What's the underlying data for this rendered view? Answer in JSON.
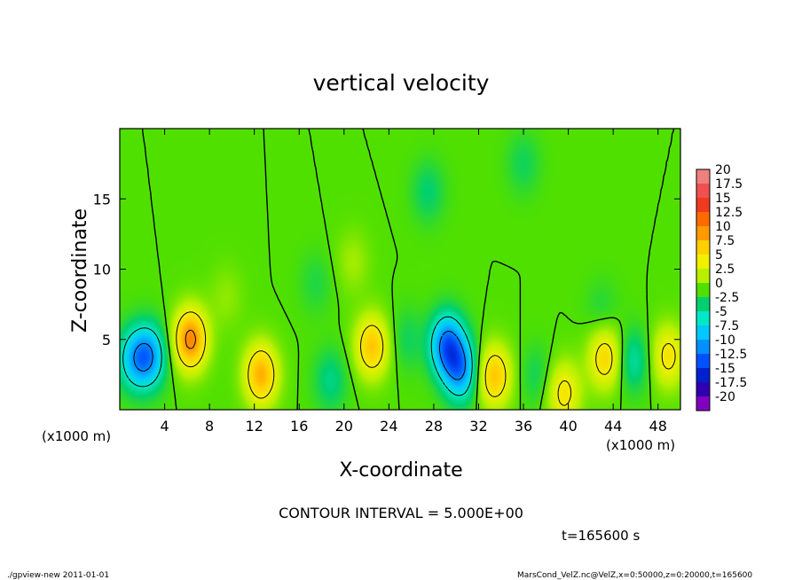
{
  "chart_data": {
    "type": "heatmap",
    "title": "vertical velocity",
    "xlabel": "X-coordinate",
    "ylabel": "Z-coordinate",
    "x_unit_label": "(x1000 m)",
    "xlim": [
      0,
      50
    ],
    "ylim": [
      0,
      20
    ],
    "x_ticks": [
      4,
      8,
      12,
      16,
      20,
      24,
      28,
      32,
      36,
      40,
      44,
      48
    ],
    "y_ticks": [
      5,
      10,
      15
    ],
    "contour_interval_text": "CONTOUR INTERVAL = 5.000E+00",
    "time_text": "t=165600 s",
    "colorbar": {
      "labels": [
        "20",
        "17.5",
        "15",
        "12.5",
        "10",
        "7.5",
        "5",
        "2.5",
        "0",
        "-2.5",
        "-5",
        "-7.5",
        "-10",
        "-12.5",
        "-15",
        "-17.5",
        "-20"
      ],
      "colors": [
        "#f08080",
        "#f05050",
        "#f03a20",
        "#ff6a00",
        "#ff9a00",
        "#ffd000",
        "#f0f000",
        "#b8f000",
        "#50e000",
        "#00d070",
        "#00e8c8",
        "#00c8ff",
        "#0090ff",
        "#0050ff",
        "#0020d0",
        "#3000b0",
        "#8000c0"
      ]
    },
    "features": [
      {
        "x": 1.2,
        "z": 3.6,
        "w": -6
      },
      {
        "x": 2.6,
        "z": 3.8,
        "w": -9
      },
      {
        "x": 6.3,
        "z": 5.0,
        "w": 11
      },
      {
        "x": 12.6,
        "z": 2.5,
        "w": 9
      },
      {
        "x": 18.8,
        "z": 2.1,
        "w": -3
      },
      {
        "x": 22.5,
        "z": 4.5,
        "w": 8
      },
      {
        "x": 25.6,
        "z": 5.0,
        "w": -2
      },
      {
        "x": 29.2,
        "z": 4.6,
        "w": -11
      },
      {
        "x": 30.4,
        "z": 2.8,
        "w": -9
      },
      {
        "x": 33.4,
        "z": 2.4,
        "w": 8
      },
      {
        "x": 37.2,
        "z": 2.4,
        "w": -2
      },
      {
        "x": 39.6,
        "z": 1.2,
        "w": 6
      },
      {
        "x": 43.3,
        "z": 3.7,
        "w": 7
      },
      {
        "x": 45.8,
        "z": 3.5,
        "w": -4
      },
      {
        "x": 48.9,
        "z": 3.8,
        "w": 6
      },
      {
        "x": 17.5,
        "z": 9.0,
        "w": -1.5
      },
      {
        "x": 20.8,
        "z": 10.5,
        "w": 2
      },
      {
        "x": 27.5,
        "z": 15.5,
        "w": -2.5
      },
      {
        "x": 36.0,
        "z": 17.5,
        "w": -2
      },
      {
        "x": 9.5,
        "z": 8.0,
        "w": 1.5
      },
      {
        "x": 43.0,
        "z": 7.0,
        "w": -1.5
      }
    ]
  },
  "footer": {
    "program": "./gpview-new   2011-01-01",
    "source": "MarsCond_VelZ.nc@VelZ,x=0:50000,z=0:20000,t=165600"
  }
}
